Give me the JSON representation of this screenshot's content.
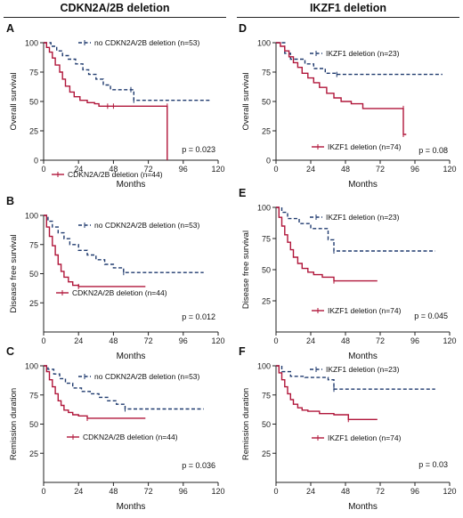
{
  "columns": [
    {
      "header": "CDKN2A/2B deletion"
    },
    {
      "header": "IKZF1 deletion"
    }
  ],
  "style": {
    "no_deletion_color": "#1f3a6e",
    "deletion_color": "#b0163a",
    "axis_color": "#222222"
  },
  "chart_data": [
    {
      "panel": "A",
      "type": "line",
      "title": "",
      "xlabel": "Months",
      "ylabel": "Overall survival",
      "xlim": [
        0,
        120
      ],
      "ylim": [
        0,
        100
      ],
      "xticks": [
        0,
        24,
        48,
        72,
        96,
        120
      ],
      "yticks": [
        0,
        25,
        50,
        75,
        100
      ],
      "pvalue": "p = 0.023",
      "series": [
        {
          "name": "no CDKN2A/2B deletion (n=53)",
          "style": "dashed",
          "x": [
            0,
            5,
            9,
            13,
            17,
            22,
            27,
            31,
            36,
            41,
            46,
            60,
            62,
            115
          ],
          "y": [
            100,
            97,
            93,
            89,
            86,
            82,
            77,
            73,
            69,
            64,
            60,
            60,
            51,
            51
          ]
        },
        {
          "name": "CDKN2A/2B deletion (n=44)",
          "style": "solid",
          "x": [
            0,
            2,
            4,
            6,
            8,
            11,
            13,
            15,
            18,
            21,
            25,
            30,
            35,
            38,
            44,
            48,
            85,
            85
          ],
          "y": [
            100,
            96,
            92,
            87,
            81,
            75,
            69,
            63,
            58,
            54,
            51,
            49,
            48,
            46,
            46,
            46,
            46,
            0
          ]
        }
      ]
    },
    {
      "panel": "B",
      "type": "line",
      "title": "",
      "xlabel": "Months",
      "ylabel": "Disease free survival",
      "xlim": [
        0,
        120
      ],
      "ylim": [
        0,
        100
      ],
      "xticks": [
        0,
        24,
        48,
        72,
        96,
        120
      ],
      "yticks": [
        25,
        50,
        75,
        100
      ],
      "pvalue": "p = 0.012",
      "series": [
        {
          "name": "no CDKN2A/2B deletion (n=53)",
          "style": "dashed",
          "x": [
            0,
            3,
            6,
            10,
            14,
            18,
            24,
            30,
            36,
            42,
            48,
            55,
            110
          ],
          "y": [
            100,
            95,
            90,
            85,
            80,
            75,
            70,
            66,
            62,
            58,
            55,
            51,
            51
          ]
        },
        {
          "name": "CDKN2A/2B deletion (n=44)",
          "style": "solid",
          "x": [
            0,
            2,
            4,
            6,
            8,
            10,
            12,
            14,
            17,
            20,
            24,
            70
          ],
          "y": [
            100,
            90,
            82,
            74,
            66,
            58,
            52,
            47,
            43,
            40,
            39,
            39
          ]
        }
      ]
    },
    {
      "panel": "C",
      "type": "line",
      "title": "",
      "xlabel": "Months",
      "ylabel": "Remission duration",
      "xlim": [
        0,
        120
      ],
      "ylim": [
        0,
        100
      ],
      "xticks": [
        0,
        24,
        48,
        72,
        96,
        120
      ],
      "yticks": [
        25,
        50,
        75,
        100
      ],
      "pvalue": "p = 0.036",
      "series": [
        {
          "name": "no CDKN2A/2B deletion (n=53)",
          "style": "dashed",
          "x": [
            0,
            3,
            7,
            11,
            15,
            20,
            26,
            32,
            38,
            44,
            50,
            56,
            110
          ],
          "y": [
            100,
            97,
            93,
            89,
            85,
            81,
            78,
            76,
            73,
            70,
            67,
            63,
            63
          ]
        },
        {
          "name": "CDKN2A/2B deletion (n=44)",
          "style": "solid",
          "x": [
            0,
            2,
            4,
            6,
            8,
            10,
            12,
            14,
            17,
            20,
            24,
            30,
            70
          ],
          "y": [
            100,
            95,
            88,
            82,
            76,
            70,
            66,
            62,
            60,
            58,
            57,
            55,
            55
          ]
        }
      ]
    },
    {
      "panel": "D",
      "type": "line",
      "title": "",
      "xlabel": "Months",
      "ylabel": "Overall survival",
      "xlim": [
        0,
        120
      ],
      "ylim": [
        0,
        100
      ],
      "xticks": [
        0,
        24,
        48,
        72,
        96,
        120
      ],
      "yticks": [
        0,
        25,
        50,
        75,
        100
      ],
      "pvalue": "p = 0.08",
      "series": [
        {
          "name": "IKZF1 deletion (n=23)",
          "style": "dashed",
          "x": [
            0,
            6,
            10,
            20,
            26,
            34,
            42,
            115
          ],
          "y": [
            100,
            91,
            86,
            82,
            78,
            74,
            73,
            73
          ]
        },
        {
          "name": "IKZF1 deletion (n=74)",
          "style": "solid",
          "x": [
            0,
            3,
            6,
            9,
            12,
            15,
            18,
            22,
            26,
            30,
            35,
            40,
            45,
            52,
            60,
            88,
            88,
            90
          ],
          "y": [
            100,
            97,
            93,
            88,
            83,
            79,
            74,
            70,
            66,
            62,
            57,
            53,
            50,
            48,
            44,
            44,
            22,
            22
          ]
        }
      ]
    },
    {
      "panel": "E",
      "type": "line",
      "title": "",
      "xlabel": "Months",
      "ylabel": "Disease free survival",
      "xlim": [
        0,
        120
      ],
      "ylim": [
        0,
        100
      ],
      "xticks": [
        0,
        24,
        48,
        72,
        96,
        120
      ],
      "yticks": [
        25,
        50,
        75,
        100
      ],
      "pvalue": "p = 0.045",
      "series": [
        {
          "name": "IKZF1 deletion (n=23)",
          "style": "dashed",
          "x": [
            0,
            4,
            8,
            16,
            24,
            36,
            40,
            110
          ],
          "y": [
            100,
            96,
            91,
            87,
            83,
            74,
            65,
            65
          ]
        },
        {
          "name": "IKZF1 deletion (n=74)",
          "style": "solid",
          "x": [
            0,
            2,
            4,
            6,
            8,
            10,
            12,
            15,
            18,
            22,
            26,
            32,
            40,
            70
          ],
          "y": [
            100,
            92,
            85,
            78,
            72,
            66,
            60,
            55,
            51,
            48,
            46,
            44,
            41,
            41
          ]
        }
      ]
    },
    {
      "panel": "F",
      "type": "line",
      "title": "",
      "xlabel": "Months",
      "ylabel": "Remission duration",
      "xlim": [
        0,
        120
      ],
      "ylim": [
        0,
        100
      ],
      "xticks": [
        0,
        24,
        48,
        72,
        96,
        120
      ],
      "yticks": [
        25,
        50,
        75,
        100
      ],
      "pvalue": "p = 0.03",
      "series": [
        {
          "name": "IKZF1 deletion (n=23)",
          "style": "dashed",
          "x": [
            0,
            4,
            10,
            20,
            36,
            40,
            110
          ],
          "y": [
            100,
            95,
            91,
            90,
            88,
            80,
            80
          ]
        },
        {
          "name": "IKZF1 deletion (n=74)",
          "style": "solid",
          "x": [
            0,
            2,
            4,
            6,
            8,
            10,
            12,
            15,
            18,
            22,
            30,
            40,
            50,
            70
          ],
          "y": [
            100,
            94,
            88,
            82,
            76,
            71,
            67,
            64,
            62,
            61,
            59,
            58,
            54,
            54
          ]
        }
      ]
    }
  ]
}
